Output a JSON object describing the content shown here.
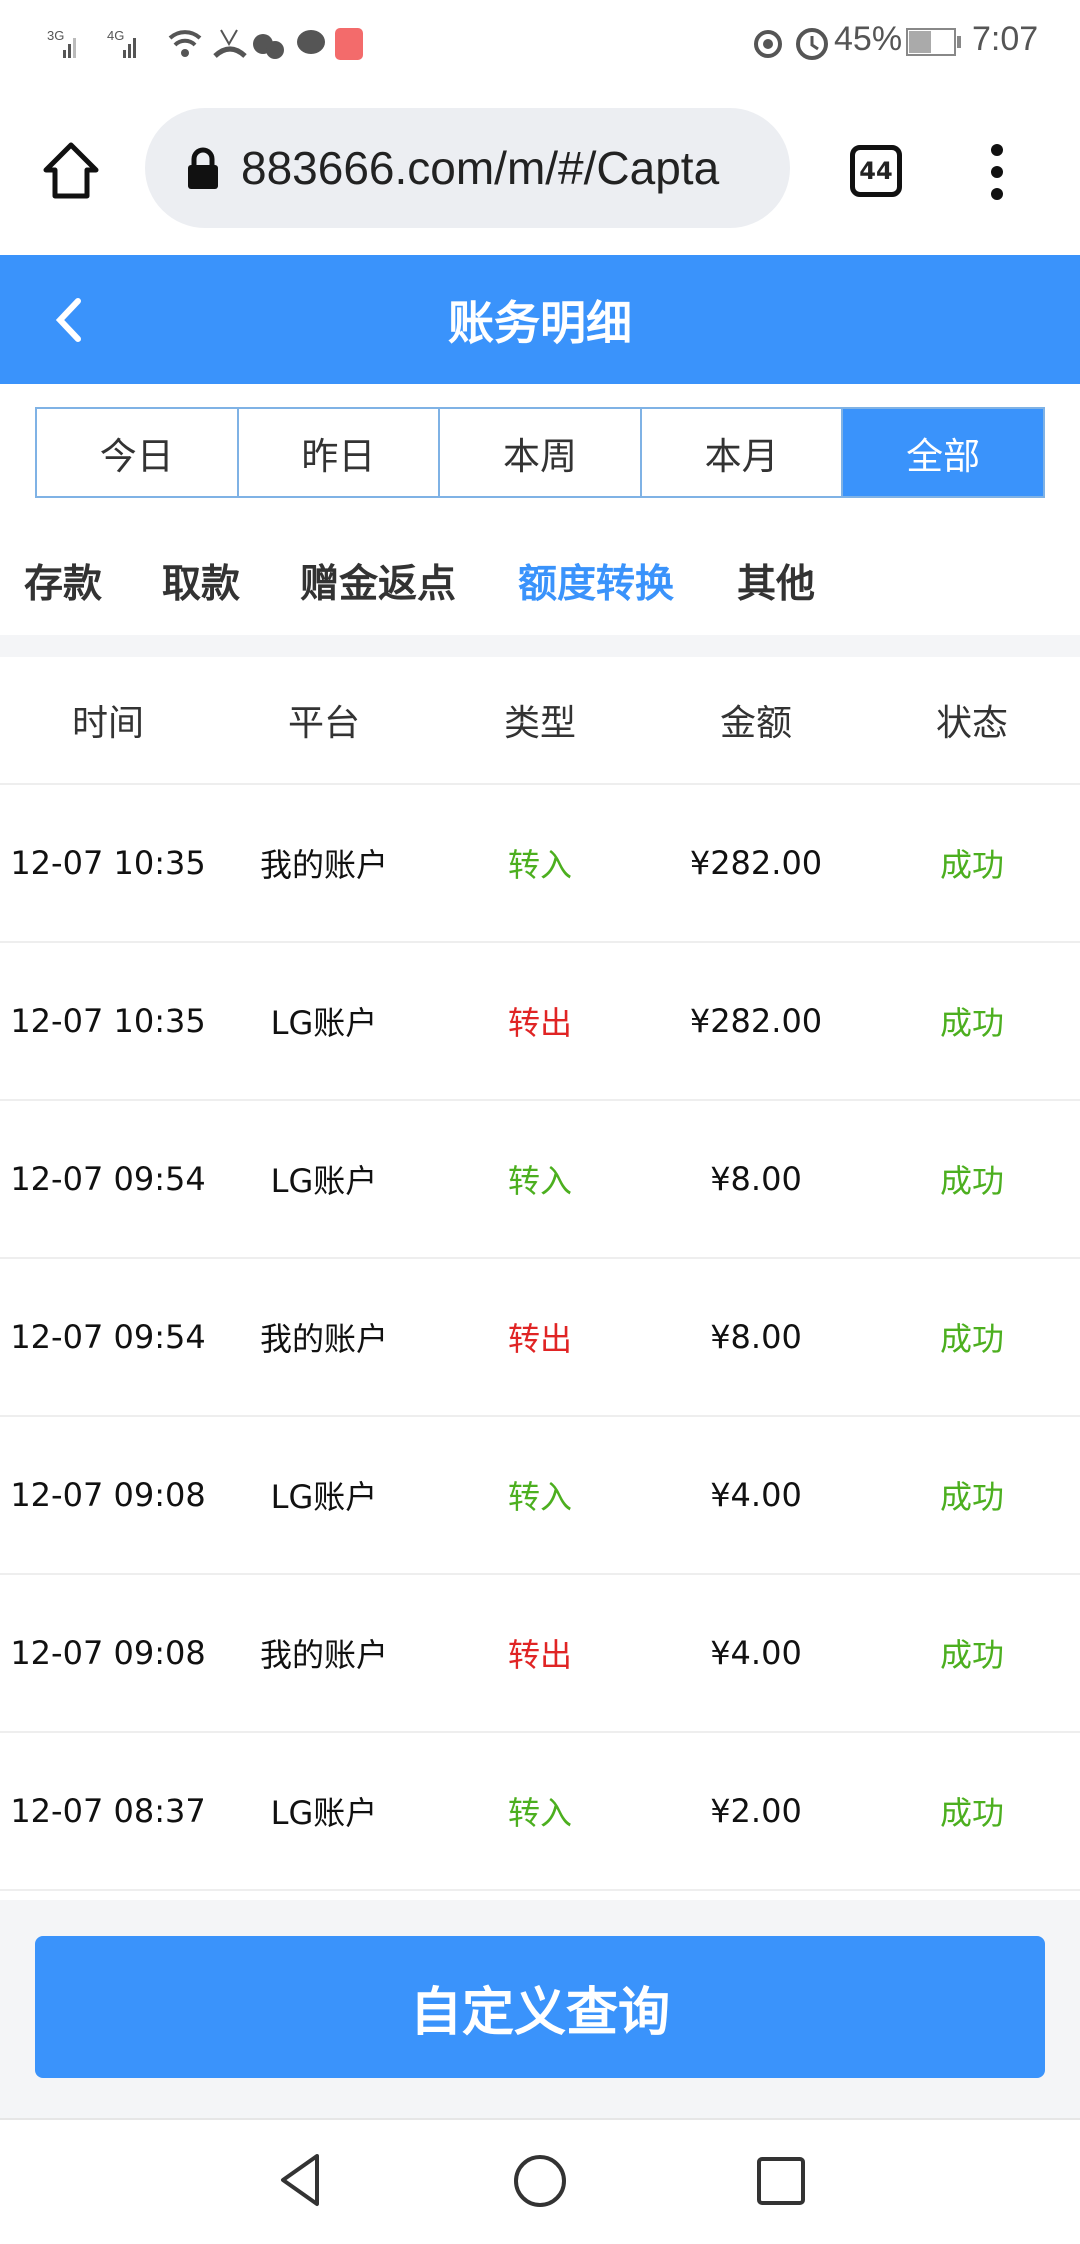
{
  "status_bar": {
    "left_icons": [
      "signal-3g-icon",
      "signal-4g-icon",
      "wifi-icon",
      "missed-call-icon",
      "wechat-icon",
      "message-icon",
      "app-icon"
    ],
    "battery": "45%",
    "time": "7:07"
  },
  "browser": {
    "url": "883666.com/m/#/Capta",
    "tab_count": "44"
  },
  "header": {
    "title": "账务明细"
  },
  "date_tabs": [
    {
      "label": "今日"
    },
    {
      "label": "昨日"
    },
    {
      "label": "本周"
    },
    {
      "label": "本月"
    },
    {
      "label": "全部",
      "active": true
    }
  ],
  "category_tabs": [
    {
      "label": "存款"
    },
    {
      "label": "取款"
    },
    {
      "label": "赠金返点"
    },
    {
      "label": "额度转换",
      "active": true
    },
    {
      "label": "其他"
    }
  ],
  "table": {
    "headers": [
      "时间",
      "平台",
      "类型",
      "金额",
      "状态"
    ],
    "rows": [
      {
        "time": "12-07 10:35",
        "platform": "我的账户",
        "type": "转入",
        "amount": "¥282.00",
        "status": "成功"
      },
      {
        "time": "12-07 10:35",
        "platform": "LG账户",
        "type": "转出",
        "amount": "¥282.00",
        "status": "成功"
      },
      {
        "time": "12-07 09:54",
        "platform": "LG账户",
        "type": "转入",
        "amount": "¥8.00",
        "status": "成功"
      },
      {
        "time": "12-07 09:54",
        "platform": "我的账户",
        "type": "转出",
        "amount": "¥8.00",
        "status": "成功"
      },
      {
        "time": "12-07 09:08",
        "platform": "LG账户",
        "type": "转入",
        "amount": "¥4.00",
        "status": "成功"
      },
      {
        "time": "12-07 09:08",
        "platform": "我的账户",
        "type": "转出",
        "amount": "¥4.00",
        "status": "成功"
      },
      {
        "time": "12-07 08:37",
        "platform": "LG账户",
        "type": "转入",
        "amount": "¥2.00",
        "status": "成功"
      }
    ]
  },
  "custom_query_label": "自定义查询",
  "colors": {
    "accent": "#3a93fb",
    "in": "#4caf1f",
    "out": "#e02424",
    "success": "#4caf1f"
  }
}
